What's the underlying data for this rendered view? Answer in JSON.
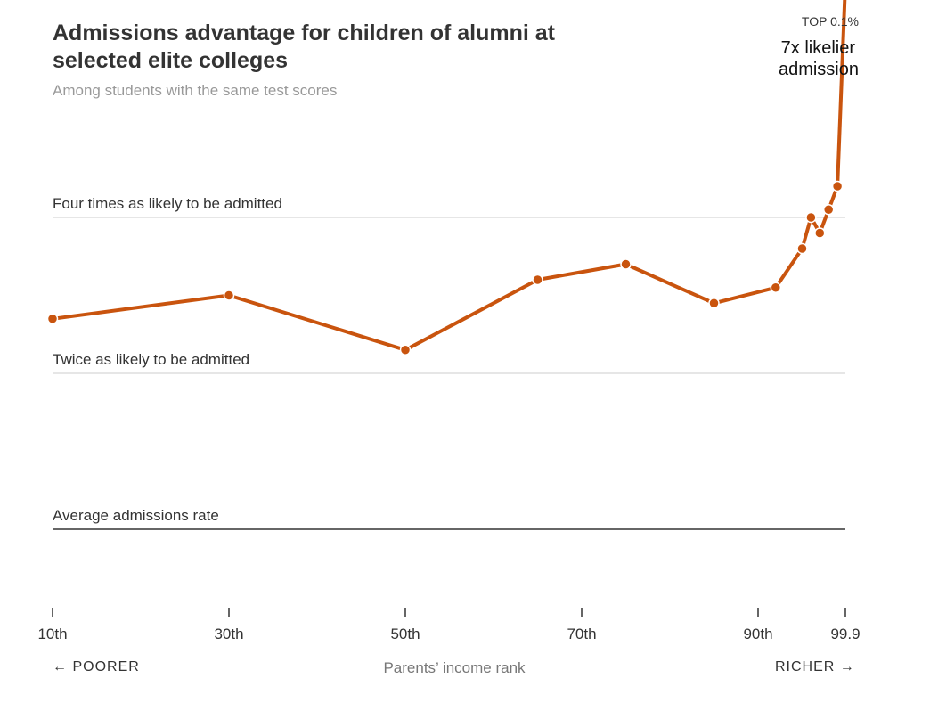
{
  "title": "Admissions advantage for children of alumni at selected elite colleges",
  "subtitle": "Among students with the same test scores",
  "axis": {
    "xlabel": "Parents’ income rank",
    "left_direction": "← POORER",
    "right_direction": "RICHER →"
  },
  "annotation": {
    "top_label": "TOP 0.1%",
    "main_line1": "7x likelier",
    "main_line2": "admission"
  },
  "colors": {
    "line": "#c9540e",
    "gridline": "#dddddd",
    "baseline": "#333333"
  },
  "chart_data": {
    "type": "line",
    "title": "Admissions advantage for children of alumni at selected elite colleges",
    "subtitle": "Among students with the same test scores",
    "xlabel": "Parents’ income rank",
    "ylabel": "",
    "x_ticks": [
      "10th",
      "30th",
      "50th",
      "70th",
      "90th",
      "99.9"
    ],
    "reference_lines": [
      {
        "label": "Four times as likely to be admitted",
        "value": 4
      },
      {
        "label": "Twice as likely to be admitted",
        "value": 2
      },
      {
        "label": "Average admissions rate",
        "value": 0
      }
    ],
    "ylim": [
      0,
      7
    ],
    "legend": "none",
    "grid": false,
    "series": [
      {
        "x": [
          10,
          30,
          50,
          65,
          75,
          85,
          92,
          95,
          96,
          97,
          98,
          99,
          99.9
        ],
        "y": [
          2.7,
          3.0,
          2.3,
          3.2,
          3.4,
          2.9,
          3.1,
          3.6,
          4.0,
          3.8,
          4.1,
          4.4,
          7.0
        ]
      }
    ]
  }
}
